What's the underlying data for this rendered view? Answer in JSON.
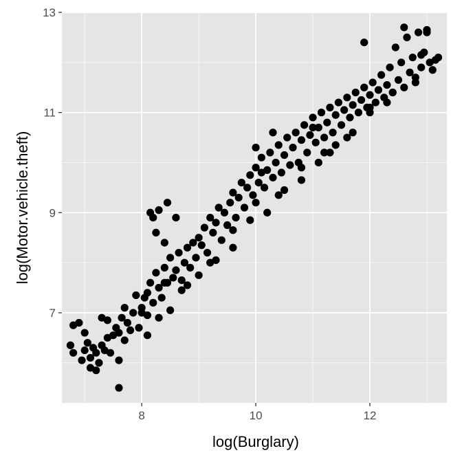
{
  "chart_data": {
    "type": "scatter",
    "title": "",
    "xlabel": "log(Burglary)",
    "ylabel": "log(Motor.vehicle.theft)",
    "xlim": [
      6.6,
      13.35
    ],
    "ylim": [
      5.2,
      13.0
    ],
    "x_ticks": [
      8,
      10,
      12
    ],
    "y_ticks": [
      7,
      9,
      11,
      13
    ],
    "x_tick_labels": [
      "8",
      "10",
      "12"
    ],
    "y_tick_labels": [
      "7",
      "9",
      "11",
      "13"
    ],
    "grid": true,
    "legend": "none",
    "point_color": "#000000",
    "panel_background": "#e5e5e5",
    "grid_color": "#ffffff",
    "series": [
      {
        "x": [
          6.75,
          6.8,
          6.9,
          6.95,
          7.0,
          7.05,
          7.1,
          7.1,
          7.15,
          7.2,
          7.25,
          7.3,
          7.3,
          7.35,
          7.4,
          7.45,
          7.5,
          7.55,
          7.6,
          7.6,
          7.65,
          7.7,
          7.7,
          7.75,
          7.8,
          7.85,
          7.9,
          7.95,
          8.0,
          8.05,
          8.1,
          8.1,
          8.15,
          8.2,
          8.25,
          8.3,
          8.35,
          8.4,
          8.45,
          8.5,
          8.55,
          8.6,
          8.65,
          8.7,
          8.75,
          8.8,
          8.85,
          8.9,
          8.95,
          9.0,
          9.05,
          9.1,
          9.15,
          9.2,
          9.25,
          9.3,
          9.35,
          9.4,
          9.45,
          9.5,
          9.55,
          9.6,
          9.65,
          9.7,
          9.75,
          9.8,
          9.85,
          9.9,
          9.95,
          10.0,
          10.05,
          10.1,
          10.15,
          10.2,
          10.25,
          10.3,
          10.35,
          10.4,
          10.45,
          10.5,
          10.55,
          10.6,
          10.65,
          10.7,
          10.75,
          10.8,
          10.85,
          10.9,
          10.95,
          11.0,
          11.05,
          11.1,
          11.15,
          11.2,
          11.25,
          11.3,
          11.35,
          11.4,
          11.45,
          11.5,
          11.55,
          11.6,
          11.65,
          11.7,
          11.75,
          11.8,
          11.85,
          11.9,
          11.95,
          12.0,
          12.05,
          12.1,
          12.15,
          12.2,
          12.25,
          12.3,
          12.35,
          12.4,
          12.45,
          12.5,
          12.55,
          12.6,
          12.65,
          12.7,
          12.75,
          12.8,
          12.85,
          12.9,
          12.95,
          13.0,
          13.05,
          13.1,
          13.15,
          13.2,
          7.6,
          8.15,
          8.2,
          8.3,
          8.45,
          8.6,
          8.4,
          8.25,
          10.0,
          10.1,
          10.3,
          11.0,
          11.3,
          11.9,
          12.6,
          13.0,
          6.8,
          7.0,
          7.2,
          7.4,
          8.1,
          8.3,
          8.5,
          8.7,
          9.0,
          9.3,
          9.6,
          9.9,
          10.2,
          10.5,
          10.8,
          11.1,
          11.4,
          11.7,
          12.0,
          12.3,
          12.8,
          8.0,
          8.4,
          8.8,
          9.2,
          9.6,
          10.0,
          10.4,
          10.8,
          11.2,
          11.6,
          12.0,
          12.4,
          12.9
        ],
        "y": [
          6.35,
          6.2,
          6.8,
          6.05,
          6.25,
          6.4,
          5.9,
          6.1,
          6.3,
          5.85,
          6.0,
          6.35,
          6.9,
          6.25,
          6.5,
          6.2,
          6.55,
          6.7,
          6.05,
          6.6,
          6.9,
          6.45,
          7.1,
          6.8,
          6.65,
          7.0,
          7.35,
          6.7,
          7.1,
          7.3,
          7.4,
          6.95,
          7.6,
          7.2,
          7.8,
          7.5,
          7.3,
          7.9,
          7.6,
          8.1,
          7.7,
          7.85,
          8.2,
          7.65,
          8.0,
          8.3,
          7.9,
          8.4,
          8.1,
          8.5,
          8.35,
          8.7,
          8.2,
          8.9,
          8.6,
          8.8,
          9.1,
          8.45,
          9.0,
          8.75,
          9.2,
          9.4,
          8.9,
          9.3,
          9.6,
          9.1,
          9.5,
          9.75,
          9.35,
          9.9,
          9.6,
          10.1,
          9.5,
          9.85,
          10.2,
          9.7,
          10.0,
          10.35,
          9.8,
          10.15,
          10.5,
          9.95,
          10.3,
          10.6,
          10.0,
          10.45,
          10.75,
          10.2,
          10.55,
          10.9,
          10.4,
          10.7,
          11.0,
          10.5,
          10.8,
          11.1,
          10.6,
          10.95,
          11.2,
          10.75,
          11.05,
          11.3,
          10.9,
          11.15,
          11.4,
          11.0,
          11.25,
          11.5,
          11.1,
          11.35,
          11.6,
          11.2,
          11.45,
          11.75,
          11.3,
          11.55,
          11.9,
          11.4,
          12.3,
          11.65,
          12.0,
          11.5,
          12.5,
          11.8,
          12.1,
          11.6,
          12.6,
          11.9,
          12.2,
          12.65,
          12.0,
          11.85,
          12.05,
          12.1,
          5.5,
          9.0,
          8.9,
          9.05,
          9.2,
          8.9,
          8.4,
          8.6,
          10.3,
          9.8,
          10.6,
          10.7,
          10.2,
          12.4,
          12.7,
          12.6,
          6.75,
          6.6,
          6.2,
          6.85,
          6.55,
          6.9,
          7.05,
          7.45,
          7.75,
          8.05,
          8.3,
          8.85,
          9.0,
          9.45,
          9.65,
          10.0,
          10.35,
          10.6,
          11.0,
          11.2,
          11.7,
          7.0,
          7.6,
          7.55,
          8.0,
          8.65,
          9.2,
          9.35,
          9.9,
          10.2,
          10.5,
          11.1,
          11.4,
          12.15
        ]
      }
    ]
  }
}
